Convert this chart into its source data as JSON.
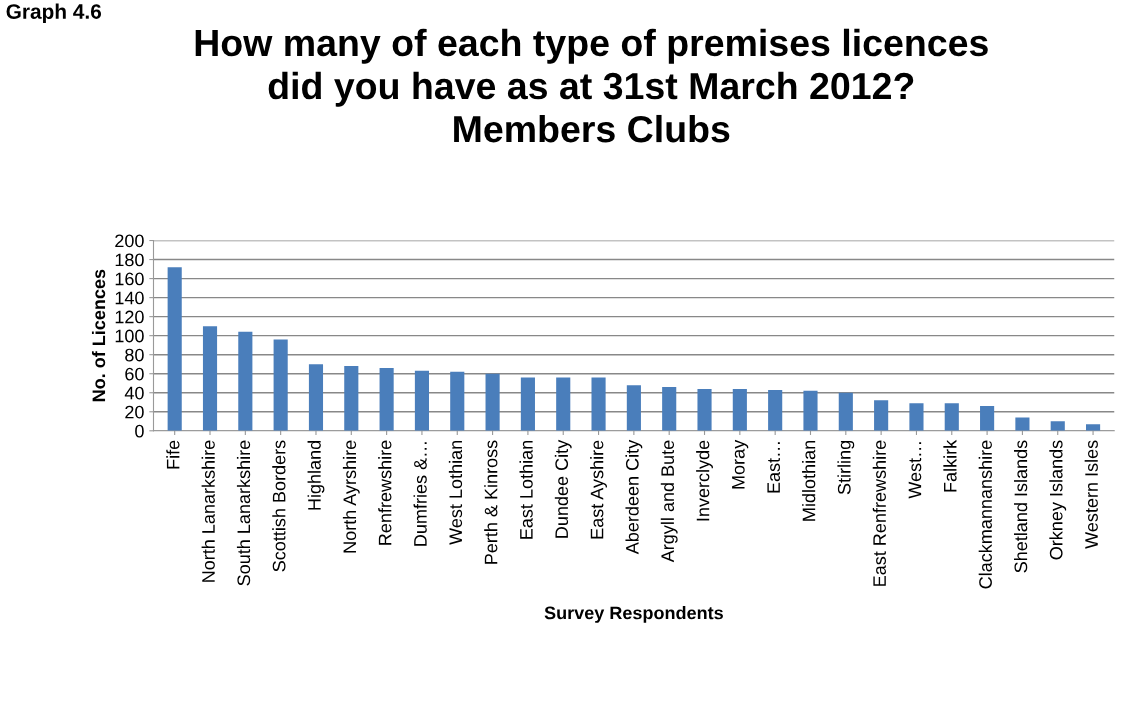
{
  "chart_data": {
    "type": "bar",
    "title": "How many of each type of premises licences\ndid you have as at 31st March 2012?\nMembers Clubs",
    "xlabel": "Survey Respondents",
    "ylabel": "No. of Licences",
    "annotations": [
      "Graph 4.6"
    ],
    "categories": [
      "Fife",
      "North Lanarkshire",
      "South Lanarkshire",
      "Scottish Borders",
      "Highland",
      "North Ayrshire",
      "Renfrewshire",
      "Dumfries &…",
      "West Lothian",
      "Perth & Kinross",
      "East Lothian",
      "Dundee City",
      "East Ayshire",
      "Aberdeen City",
      "Argyll and Bute",
      "Inverclyde",
      "Moray",
      "East…",
      "Midlothian",
      "Stirling",
      "East Renfrewshire",
      "West…",
      "Falkirk",
      "Clackmannanshire",
      "Shetland Islands",
      "Orkney Islands",
      "Western Isles"
    ],
    "values": [
      172,
      110,
      104,
      96,
      70,
      68,
      66,
      63,
      62,
      60,
      56,
      56,
      56,
      48,
      46,
      44,
      44,
      43,
      42,
      40,
      32,
      29,
      29,
      26,
      14,
      10,
      7
    ],
    "color": "#4a7ebb",
    "ylim": [
      0,
      200
    ],
    "yticks": [
      0,
      20,
      40,
      60,
      80,
      100,
      120,
      140,
      160,
      180,
      200
    ],
    "grid": "y"
  }
}
